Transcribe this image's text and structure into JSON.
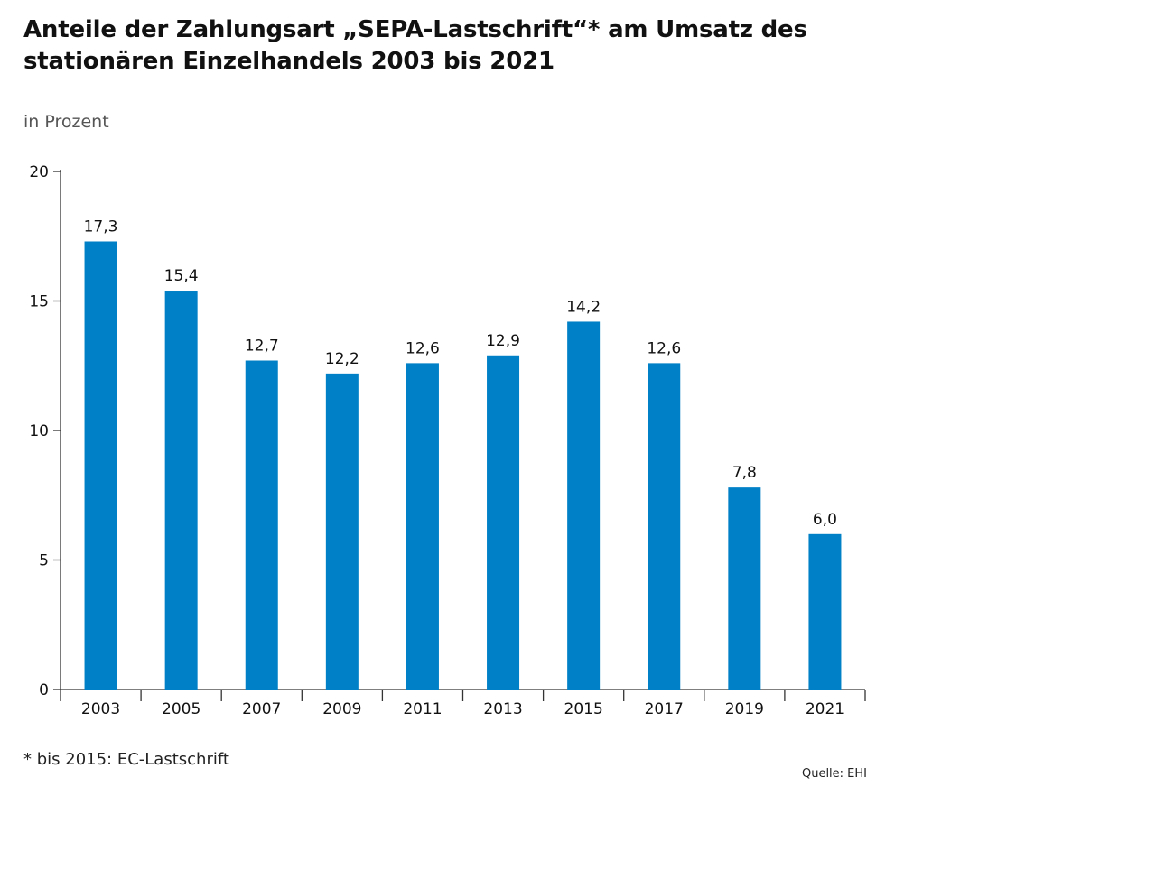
{
  "header": {
    "title": "Anteile der Zahlungsart „SEPA-Lastschrift“* am Umsatz des stationären Einzelhandels 2003 bis 2021",
    "unit": "in Prozent"
  },
  "footer": {
    "footnote": "* bis 2015: EC-Lastschrift",
    "source": "Quelle: EHI"
  },
  "colors": {
    "bar": "#0080c6",
    "axis": "#333333",
    "text": "#111111"
  },
  "chart_data": {
    "type": "bar",
    "title": "Anteile der Zahlungsart „SEPA-Lastschrift“* am Umsatz des stationären Einzelhandels 2003 bis 2021",
    "xlabel": "",
    "ylabel": "in Prozent",
    "categories": [
      "2003",
      "2005",
      "2007",
      "2009",
      "2011",
      "2013",
      "2015",
      "2017",
      "2019",
      "2021"
    ],
    "values": [
      17.3,
      15.4,
      12.7,
      12.2,
      12.6,
      12.9,
      14.2,
      12.6,
      7.8,
      6.0
    ],
    "value_labels": [
      "17,3",
      "15,4",
      "12,7",
      "12,2",
      "12,6",
      "12,9",
      "14,2",
      "12,6",
      "7,8",
      "6,0"
    ],
    "ylim": [
      0,
      20
    ],
    "yticks": [
      0,
      5,
      10,
      15,
      20
    ],
    "grid": false,
    "legend": "none"
  }
}
